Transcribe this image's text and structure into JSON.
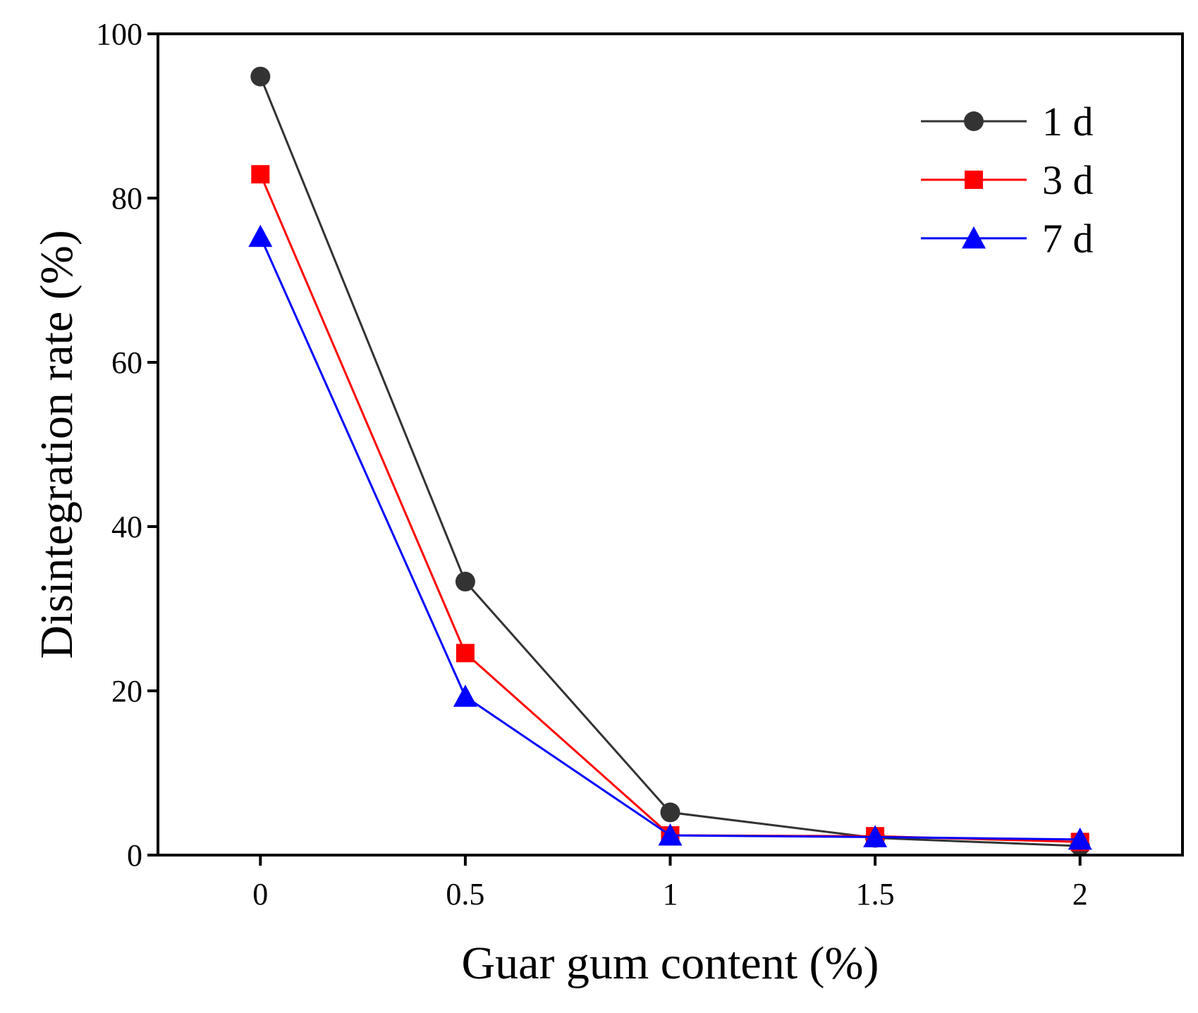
{
  "chart_data": {
    "type": "line",
    "title": "",
    "xlabel": "Guar gum content (%)",
    "ylabel": "Disintegration rate (%)",
    "x": [
      0,
      0.5,
      1,
      1.5,
      2
    ],
    "x_tick_labels": [
      "0",
      "0.5",
      "1",
      "1.5",
      "2"
    ],
    "xlim": [
      -0.25,
      2.25
    ],
    "ylim": [
      0,
      100
    ],
    "y_ticks": [
      0,
      20,
      40,
      60,
      80,
      100
    ],
    "y_tick_labels": [
      "0",
      "20",
      "40",
      "60",
      "80",
      "100"
    ],
    "grid": false,
    "legend_position": "top-right",
    "series": [
      {
        "name": "1 d",
        "color": "#333333",
        "marker": "circle",
        "values": [
          94.8,
          33.3,
          5.2,
          2.1,
          1.1
        ]
      },
      {
        "name": "3 d",
        "color": "#ff0000",
        "marker": "square",
        "values": [
          82.9,
          24.6,
          2.4,
          2.3,
          1.6
        ]
      },
      {
        "name": "7 d",
        "color": "#0000ff",
        "marker": "triangle",
        "values": [
          75.3,
          19.3,
          2.4,
          2.2,
          1.9
        ]
      }
    ]
  }
}
